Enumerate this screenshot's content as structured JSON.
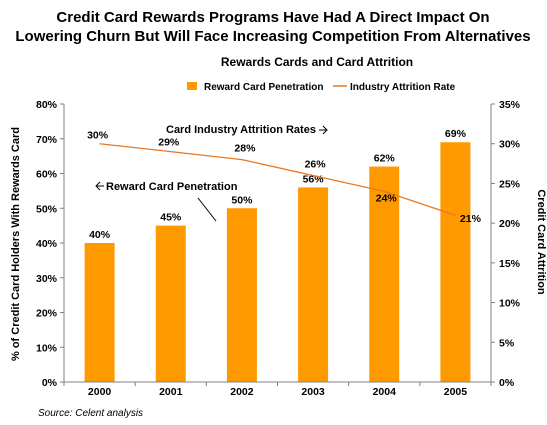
{
  "title_line1": "Credit Card Rewards Programs Have Had A Direct Impact On",
  "title_line2": "Lowering Churn But Will Face Increasing Competition From Alternatives",
  "source": "Source: Celent analysis",
  "colors": {
    "bar": "#FF9900",
    "line": "#E87722",
    "axis": "#808080",
    "text": "#000000"
  },
  "chart_data": {
    "type": "bar",
    "title": "Rewards Cards and Card Attrition",
    "categories": [
      "2000",
      "2001",
      "2002",
      "2003",
      "2004",
      "2005"
    ],
    "series": [
      {
        "name": "Reward Card Penetration",
        "type": "bar",
        "axis": "left",
        "values": [
          40,
          45,
          50,
          56,
          62,
          69
        ],
        "labels": [
          "40%",
          "45%",
          "50%",
          "56%",
          "62%",
          "69%"
        ]
      },
      {
        "name": "Industry Attrition Rate",
        "type": "line",
        "axis": "right",
        "values": [
          30,
          29,
          28,
          26,
          24,
          21
        ],
        "labels": [
          "30%",
          "29%",
          "28%",
          "26%",
          "24%",
          "21%"
        ]
      }
    ],
    "ylabel": "% of Credit Card Holders With Rewards Card",
    "y2label": "Credit Card Attrition",
    "ylim": [
      0,
      80
    ],
    "y2lim": [
      0,
      35
    ],
    "yticks": [
      "0%",
      "10%",
      "20%",
      "30%",
      "40%",
      "50%",
      "60%",
      "70%",
      "80%"
    ],
    "y2ticks": [
      "0%",
      "5%",
      "10%",
      "15%",
      "20%",
      "25%",
      "30%",
      "35%"
    ],
    "grid": false,
    "legend": "top-right",
    "annotations": [
      {
        "text": "Card Industry Attrition Rates",
        "arrow": "right"
      },
      {
        "text": "Reward Card Penetration",
        "arrow": "left"
      }
    ]
  }
}
